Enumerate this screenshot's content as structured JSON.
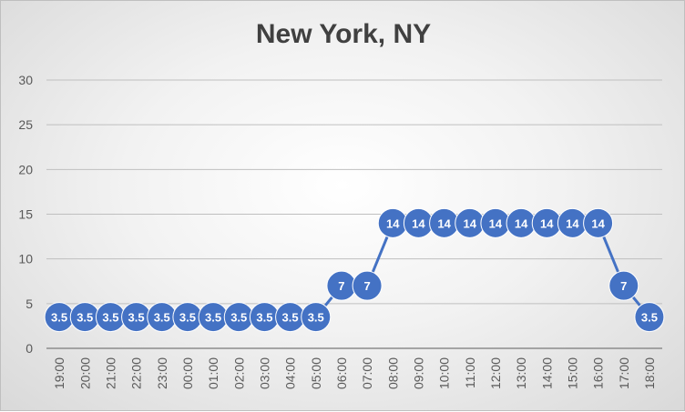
{
  "chart_data": {
    "type": "line",
    "title": "New York, NY",
    "xlabel": "",
    "ylabel": "",
    "ylim": [
      0,
      30
    ],
    "yticks": [
      0,
      5,
      10,
      15,
      20,
      25,
      30
    ],
    "grid": true,
    "legend": "none",
    "categories": [
      "19:00",
      "20:00",
      "21:00",
      "22:00",
      "23:00",
      "00:00",
      "01:00",
      "02:00",
      "03:00",
      "04:00",
      "05:00",
      "06:00",
      "07:00",
      "08:00",
      "09:00",
      "10:00",
      "11:00",
      "12:00",
      "13:00",
      "14:00",
      "15:00",
      "16:00",
      "17:00",
      "18:00"
    ],
    "series": [
      {
        "values": [
          3.5,
          3.5,
          3.5,
          3.5,
          3.5,
          3.5,
          3.5,
          3.5,
          3.5,
          3.5,
          3.5,
          7,
          7,
          14,
          14,
          14,
          14,
          14,
          14,
          14,
          14,
          14,
          7,
          3.5
        ],
        "color": "#4472c4"
      }
    ]
  }
}
